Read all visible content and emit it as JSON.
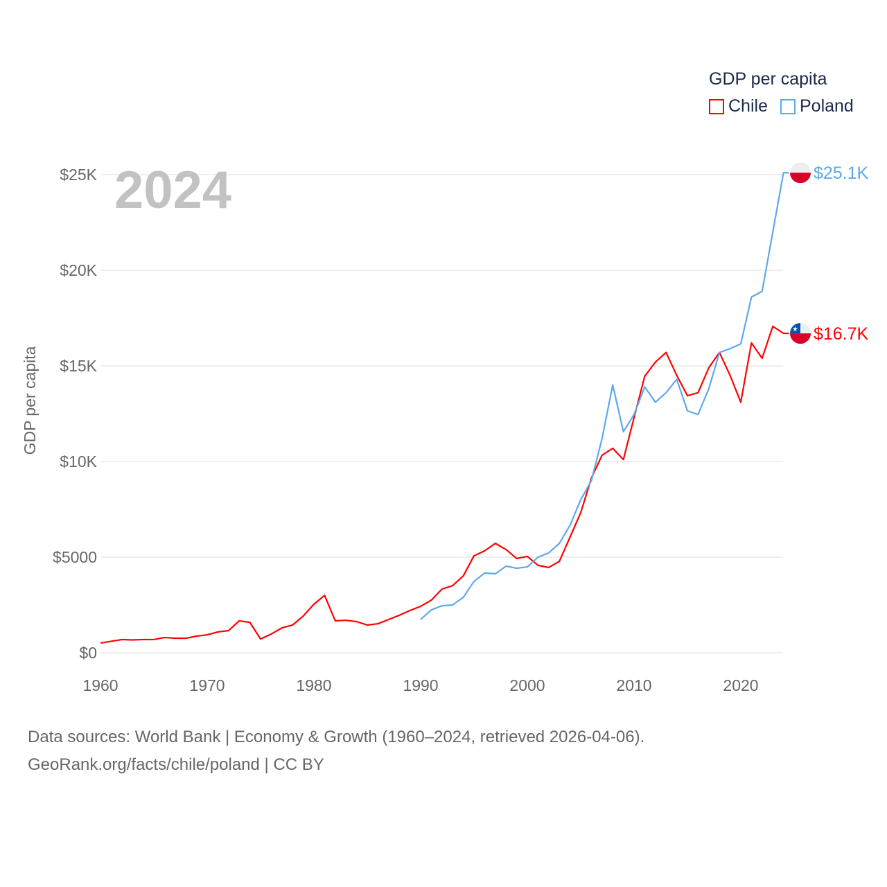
{
  "chart_data": {
    "type": "line",
    "title": "GDP per capita",
    "year_label": "2024",
    "ylabel": "GDP per capita",
    "xlabel": "",
    "xlim": [
      1960,
      2024
    ],
    "ylim": [
      0,
      25100
    ],
    "grid": true,
    "legend_placement": "top-right",
    "x_ticks": [
      1960,
      1970,
      1980,
      1990,
      2000,
      2010,
      2020
    ],
    "x_tick_labels": [
      "1960",
      "1970",
      "1980",
      "1990",
      "2000",
      "2010",
      "2020"
    ],
    "y_ticks": [
      0,
      5000,
      10000,
      15000,
      20000,
      25000
    ],
    "y_tick_labels": [
      "$0",
      "$5000",
      "$10K",
      "$15K",
      "$20K",
      "$25K"
    ],
    "series": [
      {
        "name": "Chile",
        "color": "#ff0000",
        "end_label": "$16.7K",
        "x_start": 1960,
        "values": [
          510,
          600,
          690,
          670,
          690,
          690,
          800,
          760,
          760,
          870,
          940,
          1090,
          1160,
          1670,
          1590,
          720,
          980,
          1300,
          1450,
          1920,
          2540,
          3000,
          1670,
          1700,
          1630,
          1450,
          1520,
          1740,
          1960,
          2210,
          2430,
          2750,
          3330,
          3510,
          4020,
          5070,
          5330,
          5720,
          5400,
          4930,
          5040,
          4570,
          4460,
          4780,
          6050,
          7320,
          9130,
          10330,
          10690,
          10100,
          12300,
          14460,
          15200,
          15700,
          14500,
          13440,
          13600,
          14900,
          15700,
          14500,
          13100,
          16200,
          15400,
          17070,
          16700
        ]
      },
      {
        "name": "Poland",
        "color": "#5ea8ec",
        "end_label": "$25.1K",
        "x_start": 1990,
        "values": [
          1740,
          2240,
          2460,
          2500,
          2900,
          3730,
          4170,
          4130,
          4530,
          4420,
          4490,
          5000,
          5220,
          5720,
          6670,
          8000,
          9000,
          11200,
          14000,
          11560,
          12460,
          13900,
          13100,
          13600,
          14300,
          12650,
          12460,
          13800,
          15700,
          15900,
          16150,
          18600,
          18900,
          22000,
          25100
        ]
      }
    ]
  },
  "footer": {
    "line1": "Data sources: World Bank | Economy & Growth (1960–2024, retrieved 2026-04-06).",
    "line2": "GeoRank.org/facts/chile/poland | CC BY"
  }
}
